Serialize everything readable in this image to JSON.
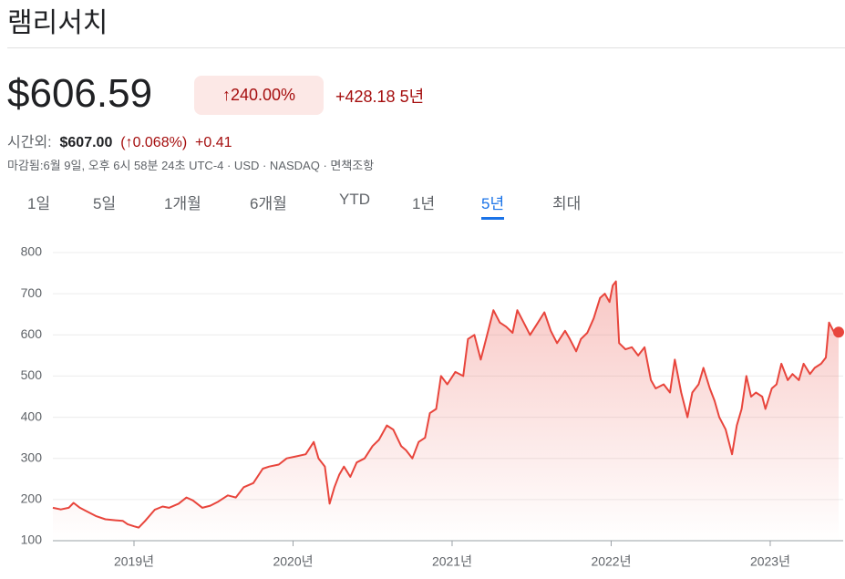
{
  "header": {
    "title": "램리서치"
  },
  "quote": {
    "price": "$606.59",
    "change_percent": "↑240.00%",
    "change": "+428.18",
    "period": "5년"
  },
  "after_hours": {
    "label": "시간외:",
    "price": "$607.00",
    "change_percent": "(↑0.068%)",
    "change": "+0.41"
  },
  "meta": "마감됨:6월 9일, 오후 6시 58분 24초 UTC-4 · USD · NASDAQ · 면책조항",
  "tabs": [
    "1일",
    "5일",
    "1개월",
    "6개월",
    "YTD",
    "1년",
    "5년",
    "최대"
  ],
  "selected_tab_index": 6,
  "chart_data": {
    "type": "line",
    "color": "#e8453c",
    "grid": true,
    "xlim": [
      2018.49,
      2023.43
    ],
    "ylim": [
      100,
      800
    ],
    "xticks": [
      {
        "value": 2019,
        "label": "2019년"
      },
      {
        "value": 2020,
        "label": "2020년"
      },
      {
        "value": 2021,
        "label": "2021년"
      },
      {
        "value": 2022,
        "label": "2022년"
      },
      {
        "value": 2023,
        "label": "2023년"
      }
    ],
    "yticks": [
      100,
      200,
      300,
      400,
      500,
      600,
      700,
      800
    ],
    "x": [
      2018.49,
      2018.54,
      2018.59,
      2018.62,
      2018.66,
      2018.7,
      2018.76,
      2018.82,
      2018.87,
      2018.93,
      2018.96,
      2019.0,
      2019.03,
      2019.07,
      2019.13,
      2019.18,
      2019.22,
      2019.28,
      2019.33,
      2019.37,
      2019.43,
      2019.48,
      2019.53,
      2019.59,
      2019.64,
      2019.69,
      2019.75,
      2019.81,
      2019.85,
      2019.91,
      2019.96,
      2020.02,
      2020.08,
      2020.13,
      2020.16,
      2020.2,
      2020.23,
      2020.26,
      2020.29,
      2020.32,
      2020.36,
      2020.4,
      2020.45,
      2020.5,
      2020.54,
      2020.59,
      2020.63,
      2020.68,
      2020.71,
      2020.75,
      2020.79,
      2020.83,
      2020.86,
      2020.9,
      2020.93,
      2020.97,
      2021.02,
      2021.07,
      2021.1,
      2021.14,
      2021.18,
      2021.22,
      2021.26,
      2021.3,
      2021.34,
      2021.38,
      2021.41,
      2021.45,
      2021.49,
      2021.54,
      2021.58,
      2021.62,
      2021.66,
      2021.71,
      2021.74,
      2021.78,
      2021.81,
      2021.85,
      2021.89,
      2021.93,
      2021.96,
      2021.99,
      2022.01,
      2022.03,
      2022.05,
      2022.09,
      2022.13,
      2022.17,
      2022.21,
      2022.25,
      2022.28,
      2022.33,
      2022.37,
      2022.4,
      2022.44,
      2022.48,
      2022.51,
      2022.55,
      2022.58,
      2022.62,
      2022.65,
      2022.68,
      2022.72,
      2022.76,
      2022.79,
      2022.82,
      2022.85,
      2022.88,
      2022.91,
      2022.95,
      2022.97,
      2023.01,
      2023.04,
      2023.07,
      2023.11,
      2023.14,
      2023.18,
      2023.21,
      2023.25,
      2023.28,
      2023.32,
      2023.35,
      2023.37,
      2023.41,
      2023.43
    ],
    "values": [
      180,
      176,
      180,
      192,
      180,
      172,
      160,
      152,
      150,
      148,
      140,
      135,
      132,
      148,
      175,
      183,
      180,
      190,
      205,
      198,
      180,
      185,
      195,
      210,
      205,
      230,
      240,
      275,
      280,
      285,
      300,
      305,
      310,
      340,
      300,
      280,
      190,
      230,
      260,
      280,
      255,
      290,
      300,
      330,
      345,
      380,
      370,
      330,
      320,
      300,
      340,
      350,
      410,
      420,
      500,
      480,
      510,
      500,
      590,
      600,
      540,
      600,
      660,
      630,
      620,
      605,
      660,
      630,
      600,
      630,
      655,
      610,
      580,
      610,
      590,
      560,
      590,
      605,
      640,
      690,
      700,
      680,
      720,
      730,
      580,
      565,
      570,
      550,
      570,
      490,
      470,
      480,
      460,
      540,
      460,
      400,
      460,
      480,
      520,
      470,
      440,
      400,
      370,
      310,
      380,
      420,
      500,
      450,
      460,
      450,
      420,
      470,
      480,
      530,
      490,
      505,
      490,
      530,
      505,
      520,
      530,
      545,
      630,
      600,
      606.59
    ]
  }
}
